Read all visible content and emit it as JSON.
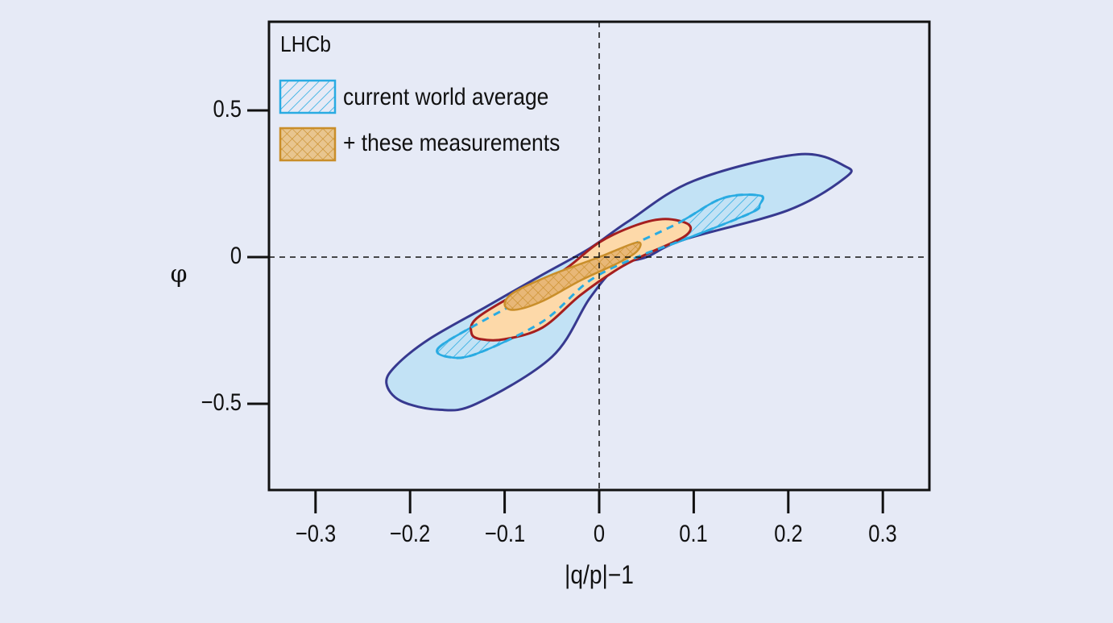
{
  "chart_data": {
    "type": "contour",
    "title": "",
    "experiment_label": "LHCb",
    "xlabel": "|q/p|−1",
    "ylabel": "φ",
    "xlim": [
      -0.35,
      0.35
    ],
    "ylim": [
      -0.8,
      0.8
    ],
    "xticks": [
      -0.3,
      -0.2,
      -0.1,
      0,
      0.1,
      0.2,
      0.3
    ],
    "xtick_labels": [
      "−0.3",
      "−0.2",
      "−0.1",
      "0",
      "0.1",
      "0.2",
      "0.3"
    ],
    "yticks": [
      0.5,
      0,
      -0.5
    ],
    "ytick_labels": [
      "0.5",
      "0",
      "−0.5"
    ],
    "grid": false,
    "reference_lines": [
      {
        "orientation": "vertical",
        "x": 0,
        "style": "dashed"
      },
      {
        "orientation": "horizontal",
        "y": 0,
        "style": "dashed"
      }
    ],
    "legend": {
      "position": "upper left",
      "entries": [
        {
          "label": "current world average",
          "style": "hatched-diagonal",
          "color": "#29abe2"
        },
        {
          "label": "+ these measurements",
          "style": "cross-hatched",
          "color": "#d4952a"
        }
      ]
    },
    "series": [
      {
        "name": "current world average (outer contour)",
        "style": "filled",
        "fill": "#c2e2f5",
        "stroke": "#37398f",
        "points": [
          [
            -0.225,
            -0.43
          ],
          [
            -0.215,
            -0.37
          ],
          [
            -0.18,
            -0.28
          ],
          [
            -0.12,
            -0.17
          ],
          [
            -0.06,
            -0.06
          ],
          [
            -0.01,
            0.03
          ],
          [
            0.03,
            0.12
          ],
          [
            0.1,
            0.26
          ],
          [
            0.21,
            0.35
          ],
          [
            0.26,
            0.31
          ],
          [
            0.26,
            0.27
          ],
          [
            0.2,
            0.16
          ],
          [
            0.09,
            0.06
          ],
          [
            0.05,
            0.0
          ],
          [
            0.02,
            -0.03
          ],
          [
            -0.01,
            -0.14
          ],
          [
            -0.05,
            -0.34
          ],
          [
            -0.13,
            -0.5
          ],
          [
            -0.17,
            -0.52
          ],
          [
            -0.21,
            -0.49
          ]
        ]
      },
      {
        "name": "current world average (inner contour)",
        "style": "hatched",
        "stroke": "#29abe2",
        "points": [
          [
            -0.17,
            -0.31
          ],
          [
            -0.13,
            -0.23
          ],
          [
            -0.06,
            -0.11
          ],
          [
            0.0,
            -0.01
          ],
          [
            0.08,
            0.11
          ],
          [
            0.13,
            0.2
          ],
          [
            0.17,
            0.21
          ],
          [
            0.17,
            0.18
          ],
          [
            0.16,
            0.15
          ],
          [
            0.09,
            0.06
          ],
          [
            0.04,
            0.0
          ],
          [
            -0.01,
            -0.08
          ],
          [
            -0.06,
            -0.22
          ],
          [
            -0.13,
            -0.33
          ],
          [
            -0.16,
            -0.34
          ]
        ]
      },
      {
        "name": "+ these measurements (outer contour)",
        "style": "filled",
        "fill": "#fdd9a9",
        "stroke": "#a51f1f",
        "points": [
          [
            -0.135,
            -0.26
          ],
          [
            -0.13,
            -0.21
          ],
          [
            -0.09,
            -0.13
          ],
          [
            -0.04,
            -0.05
          ],
          [
            0.0,
            0.05
          ],
          [
            0.04,
            0.11
          ],
          [
            0.07,
            0.13
          ],
          [
            0.095,
            0.11
          ],
          [
            0.09,
            0.07
          ],
          [
            0.05,
            0.01
          ],
          [
            0.02,
            -0.04
          ],
          [
            -0.02,
            -0.13
          ],
          [
            -0.06,
            -0.24
          ],
          [
            -0.1,
            -0.28
          ],
          [
            -0.125,
            -0.28
          ]
        ]
      },
      {
        "name": "+ these measurements (inner contour)",
        "style": "cross-hatched",
        "fill": "#e8b777",
        "stroke": "#c98e2a",
        "points": [
          [
            -0.1,
            -0.16
          ],
          [
            -0.09,
            -0.12
          ],
          [
            -0.05,
            -0.06
          ],
          [
            0.0,
            0.0
          ],
          [
            0.04,
            0.05
          ],
          [
            0.04,
            0.02
          ],
          [
            0.02,
            -0.02
          ],
          [
            -0.02,
            -0.08
          ],
          [
            -0.06,
            -0.15
          ],
          [
            -0.09,
            -0.18
          ]
        ]
      }
    ]
  }
}
